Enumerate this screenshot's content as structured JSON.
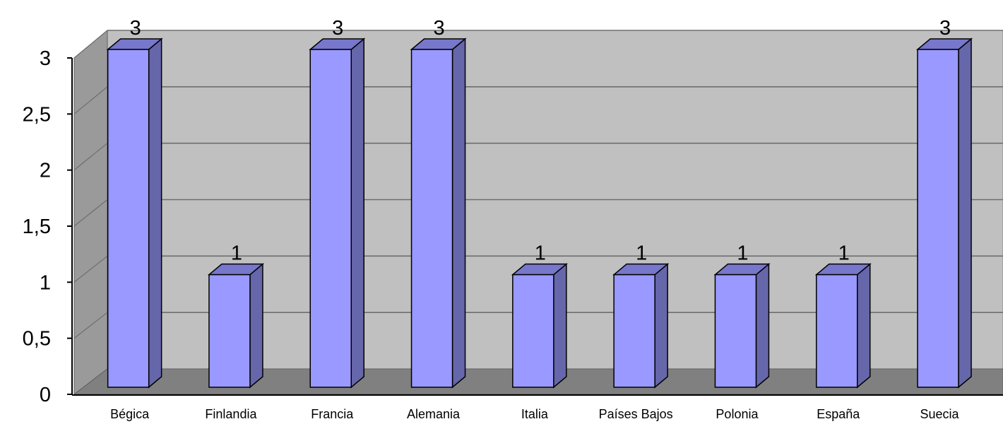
{
  "chart_data": {
    "type": "bar",
    "categories": [
      "Bégica",
      "Finlandia",
      "Francia",
      "Alemania",
      "Italia",
      "Países Bajos",
      "Polonia",
      "España",
      "Suecia"
    ],
    "values": [
      3,
      1,
      3,
      3,
      1,
      1,
      1,
      1,
      3
    ],
    "data_labels": [
      "3",
      "1",
      "3",
      "3",
      "1",
      "1",
      "1",
      "1",
      "3"
    ],
    "yticks": [
      "0",
      "0,5",
      "1",
      "1,5",
      "2",
      "2,5",
      "3"
    ],
    "ylim": [
      0,
      3
    ],
    "grid": true,
    "legend": "none",
    "bar_color": "#9999ff",
    "bar_side_color": "#6666aa",
    "bar_top_color": "#7777cc",
    "plot_wall_color": "#c0c0c0",
    "plot_floor_color": "#808080",
    "plot_side_wall_color": "#9a9a9a"
  }
}
